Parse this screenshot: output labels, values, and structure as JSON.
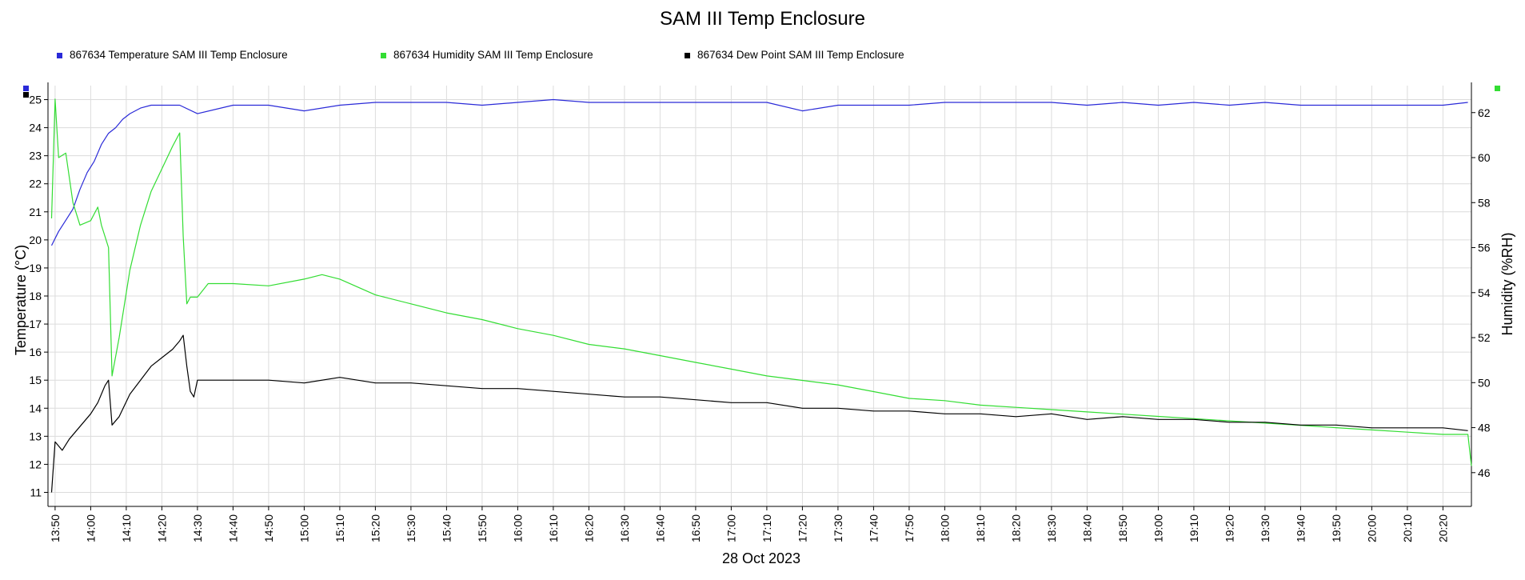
{
  "chart_data": {
    "type": "line",
    "title": "SAM III Temp Enclosure",
    "xlabel": "28 Oct 2023",
    "ylabel_left": "Temperature (°C)",
    "ylabel_right": "Humidity (%RH)",
    "xlim": [
      "13:48",
      "20:28"
    ],
    "ylim_left": [
      10.5,
      25.5
    ],
    "ylim_right": [
      44.5,
      63.2
    ],
    "x_tick_labels": [
      "13:50",
      "14:00",
      "14:10",
      "14:20",
      "14:30",
      "14:40",
      "14:50",
      "15:00",
      "15:10",
      "15:20",
      "15:30",
      "15:40",
      "15:50",
      "16:00",
      "16:10",
      "16:20",
      "16:30",
      "16:40",
      "16:50",
      "17:00",
      "17:10",
      "17:20",
      "17:30",
      "17:40",
      "17:50",
      "18:00",
      "18:10",
      "18:20",
      "18:30",
      "18:40",
      "18:50",
      "19:00",
      "19:10",
      "19:20",
      "19:30",
      "19:40",
      "19:50",
      "20:00",
      "20:10",
      "20:20"
    ],
    "y_tick_labels_left": [
      "11",
      "12",
      "13",
      "14",
      "15",
      "16",
      "17",
      "18",
      "19",
      "20",
      "21",
      "22",
      "23",
      "24",
      "25"
    ],
    "y_tick_labels_right": [
      "46",
      "48",
      "50",
      "52",
      "54",
      "56",
      "58",
      "60",
      "62"
    ],
    "grid": true,
    "legend_position": "top",
    "series": [
      {
        "name": "867634  Temperature SAM III Temp Enclosure",
        "color": "#2a2ad8",
        "axis": "left",
        "x": [
          "13:49",
          "13:51",
          "13:53",
          "13:55",
          "13:57",
          "13:59",
          "14:01",
          "14:03",
          "14:05",
          "14:07",
          "14:09",
          "14:11",
          "14:14",
          "14:17",
          "14:20",
          "14:25",
          "14:30",
          "14:40",
          "14:50",
          "15:00",
          "15:10",
          "15:20",
          "15:30",
          "15:40",
          "15:50",
          "16:00",
          "16:10",
          "16:20",
          "16:30",
          "16:40",
          "16:50",
          "17:00",
          "17:10",
          "17:20",
          "17:30",
          "17:40",
          "17:50",
          "18:00",
          "18:10",
          "18:20",
          "18:30",
          "18:40",
          "18:50",
          "19:00",
          "19:10",
          "19:20",
          "19:30",
          "19:40",
          "19:50",
          "20:00",
          "20:10",
          "20:20",
          "20:27"
        ],
        "y": [
          19.8,
          20.3,
          20.7,
          21.1,
          21.8,
          22.4,
          22.8,
          23.4,
          23.8,
          24.0,
          24.3,
          24.5,
          24.7,
          24.8,
          24.8,
          24.8,
          24.5,
          24.8,
          24.8,
          24.6,
          24.8,
          24.9,
          24.9,
          24.9,
          24.8,
          24.9,
          25.0,
          24.9,
          24.9,
          24.9,
          24.9,
          24.9,
          24.9,
          24.6,
          24.8,
          24.8,
          24.8,
          24.9,
          24.9,
          24.9,
          24.9,
          24.8,
          24.9,
          24.8,
          24.9,
          24.8,
          24.9,
          24.8,
          24.8,
          24.8,
          24.8,
          24.8,
          24.9
        ]
      },
      {
        "name": "867634  Humidity SAM III Temp Enclosure",
        "color": "#33dd33",
        "axis": "right",
        "x": [
          "13:49",
          "13:50",
          "13:51",
          "13:53",
          "13:55",
          "13:57",
          "14:00",
          "14:02",
          "14:03",
          "14:05",
          "14:06",
          "14:08",
          "14:11",
          "14:14",
          "14:17",
          "14:20",
          "14:23",
          "14:25",
          "14:26",
          "14:27",
          "14:28",
          "14:30",
          "14:33",
          "14:40",
          "14:50",
          "15:00",
          "15:05",
          "15:10",
          "15:20",
          "15:30",
          "15:40",
          "15:50",
          "16:00",
          "16:10",
          "16:20",
          "16:30",
          "16:40",
          "16:50",
          "17:00",
          "17:10",
          "17:20",
          "17:30",
          "17:40",
          "17:50",
          "18:00",
          "18:10",
          "18:20",
          "18:30",
          "18:40",
          "18:50",
          "19:00",
          "19:10",
          "19:20",
          "19:30",
          "19:40",
          "19:50",
          "20:00",
          "20:10",
          "20:20",
          "20:27",
          "20:28"
        ],
        "y": [
          57.3,
          62.6,
          60.0,
          60.2,
          58.0,
          57.0,
          57.2,
          57.8,
          57.0,
          56.0,
          50.3,
          52.0,
          55.0,
          57.0,
          58.5,
          59.5,
          60.5,
          61.1,
          56.5,
          53.5,
          53.8,
          53.8,
          54.4,
          54.4,
          54.3,
          54.6,
          54.8,
          54.6,
          53.9,
          53.5,
          53.1,
          52.8,
          52.4,
          52.1,
          51.7,
          51.5,
          51.2,
          50.9,
          50.6,
          50.3,
          50.1,
          49.9,
          49.6,
          49.3,
          49.2,
          49.0,
          48.9,
          48.8,
          48.7,
          48.6,
          48.5,
          48.4,
          48.3,
          48.2,
          48.1,
          48.0,
          47.9,
          47.8,
          47.7,
          47.7,
          46.3
        ]
      },
      {
        "name": "867634  Dew Point SAM III Temp Enclosure",
        "color": "#000000",
        "axis": "left",
        "x": [
          "13:49",
          "13:50",
          "13:52",
          "13:54",
          "13:56",
          "13:58",
          "14:00",
          "14:02",
          "14:04",
          "14:05",
          "14:06",
          "14:08",
          "14:11",
          "14:14",
          "14:17",
          "14:20",
          "14:23",
          "14:25",
          "14:26",
          "14:27",
          "14:28",
          "14:29",
          "14:30",
          "14:40",
          "14:50",
          "15:00",
          "15:10",
          "15:20",
          "15:30",
          "15:40",
          "15:50",
          "16:00",
          "16:10",
          "16:20",
          "16:30",
          "16:40",
          "16:50",
          "17:00",
          "17:10",
          "17:20",
          "17:30",
          "17:40",
          "17:50",
          "18:00",
          "18:10",
          "18:20",
          "18:30",
          "18:40",
          "18:50",
          "19:00",
          "19:10",
          "19:20",
          "19:30",
          "19:40",
          "19:50",
          "20:00",
          "20:10",
          "20:20",
          "20:27"
        ],
        "y": [
          11.0,
          12.8,
          12.5,
          12.9,
          13.2,
          13.5,
          13.8,
          14.2,
          14.8,
          15.0,
          13.4,
          13.7,
          14.5,
          15.0,
          15.5,
          15.8,
          16.1,
          16.4,
          16.6,
          15.5,
          14.6,
          14.4,
          15.0,
          15.0,
          15.0,
          14.9,
          15.1,
          14.9,
          14.9,
          14.8,
          14.7,
          14.7,
          14.6,
          14.5,
          14.4,
          14.4,
          14.3,
          14.2,
          14.2,
          14.0,
          14.0,
          13.9,
          13.9,
          13.8,
          13.8,
          13.7,
          13.8,
          13.6,
          13.7,
          13.6,
          13.6,
          13.5,
          13.5,
          13.4,
          13.4,
          13.3,
          13.3,
          13.3,
          13.2
        ]
      }
    ]
  }
}
